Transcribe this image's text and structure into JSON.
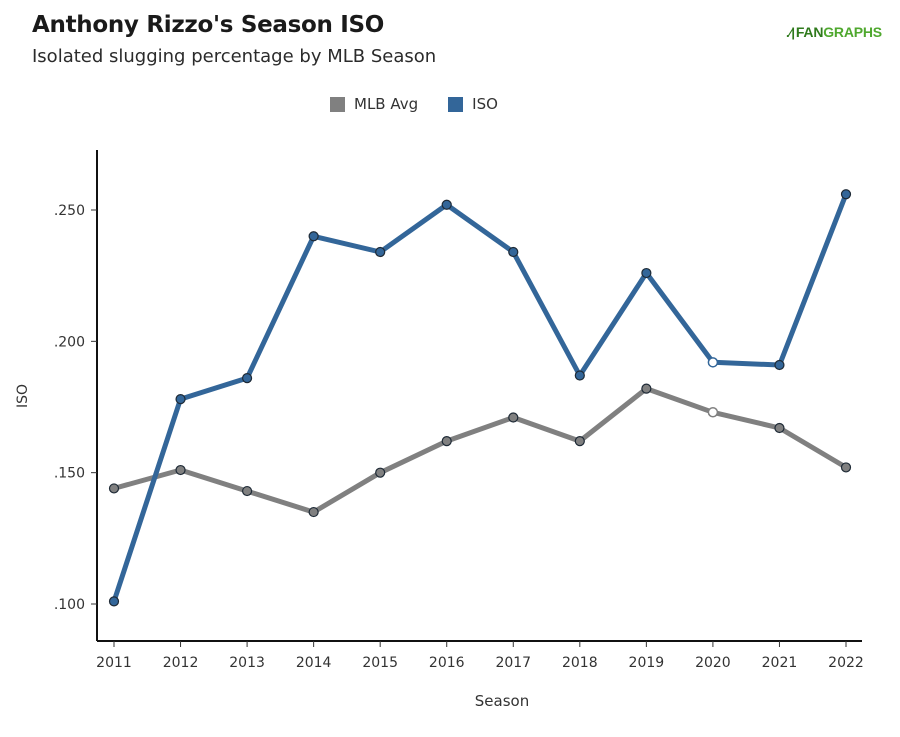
{
  "header": {
    "title": "Anthony Rizzo's Season ISO",
    "subtitle": "Isolated slugging percentage by MLB Season",
    "logo_text_a": "FAN",
    "logo_text_b": "GRAPHS"
  },
  "colors": {
    "iso": "#336699",
    "mlb_avg": "#808080",
    "logo": "#4fa82e"
  },
  "chart_data": {
    "type": "line",
    "title": "Anthony Rizzo's Season ISO",
    "subtitle": "Isolated slugging percentage by MLB Season",
    "xlabel": "Season",
    "ylabel": "ISO",
    "x": [
      2011,
      2012,
      2013,
      2014,
      2015,
      2016,
      2017,
      2018,
      2019,
      2020,
      2021,
      2022
    ],
    "x_tick_labels": [
      "2011",
      "2012",
      "2013",
      "2014",
      "2015",
      "2016",
      "2017",
      "2018",
      "2019",
      "2020",
      "2021",
      "2022"
    ],
    "y_ticks": [
      0.1,
      0.15,
      0.2,
      0.25
    ],
    "y_tick_labels": [
      ".100",
      ".150",
      ".200",
      ".250"
    ],
    "ylim": [
      0.086,
      0.272
    ],
    "grid": false,
    "legend_position": "top-center",
    "series": [
      {
        "name": "MLB Avg",
        "color": "#808080",
        "values": [
          0.144,
          0.151,
          0.143,
          0.135,
          0.15,
          0.162,
          0.171,
          0.162,
          0.182,
          0.173,
          0.167,
          0.152
        ],
        "hollow_points": [
          2020
        ]
      },
      {
        "name": "ISO",
        "color": "#336699",
        "values": [
          0.101,
          0.178,
          0.186,
          0.24,
          0.234,
          0.252,
          0.234,
          0.187,
          0.226,
          0.192,
          0.191,
          0.256
        ],
        "hollow_points": [
          2020
        ]
      }
    ]
  }
}
